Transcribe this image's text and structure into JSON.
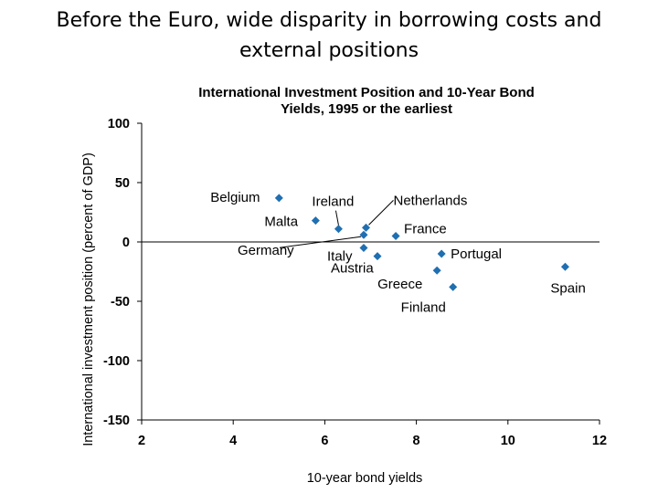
{
  "slide": {
    "title_line1": "Before the Euro, wide disparity in borrowing costs and",
    "title_line2": "external positions"
  },
  "colors": {
    "marker": "#1f6fb2",
    "axis": "#000000"
  },
  "chart_data": {
    "type": "scatter",
    "title_line1": "International Investment Position and 10-Year Bond",
    "title_line2": "Yields, 1995 or the earliest",
    "xlabel": "10-year bond yields",
    "ylabel": "International investment position  (percent of GDP)",
    "xlim": [
      2,
      12
    ],
    "ylim": [
      -150,
      100
    ],
    "xticks": [
      "2",
      "4",
      "6",
      "8",
      "10",
      "12"
    ],
    "yticks": [
      "100",
      "50",
      "0",
      "-50",
      "-100",
      "-150"
    ],
    "grid": false,
    "points": [
      {
        "name": "Belgium",
        "x": 5.0,
        "y": 37
      },
      {
        "name": "Malta",
        "x": 5.8,
        "y": 18
      },
      {
        "name": "Ireland",
        "x": 6.3,
        "y": 11
      },
      {
        "name": "Netherlands",
        "x": 6.9,
        "y": 12
      },
      {
        "name": "Germany",
        "x": 6.85,
        "y": 6
      },
      {
        "name": "Italy",
        "x": 6.85,
        "y": -5
      },
      {
        "name": "Austria",
        "x": 7.15,
        "y": -12
      },
      {
        "name": "France",
        "x": 7.55,
        "y": 5
      },
      {
        "name": "Portugal",
        "x": 8.55,
        "y": -10
      },
      {
        "name": "Greece",
        "x": 8.45,
        "y": -24
      },
      {
        "name": "Finland",
        "x": 8.8,
        "y": -38
      },
      {
        "name": "Spain",
        "x": 11.25,
        "y": -21
      }
    ]
  }
}
